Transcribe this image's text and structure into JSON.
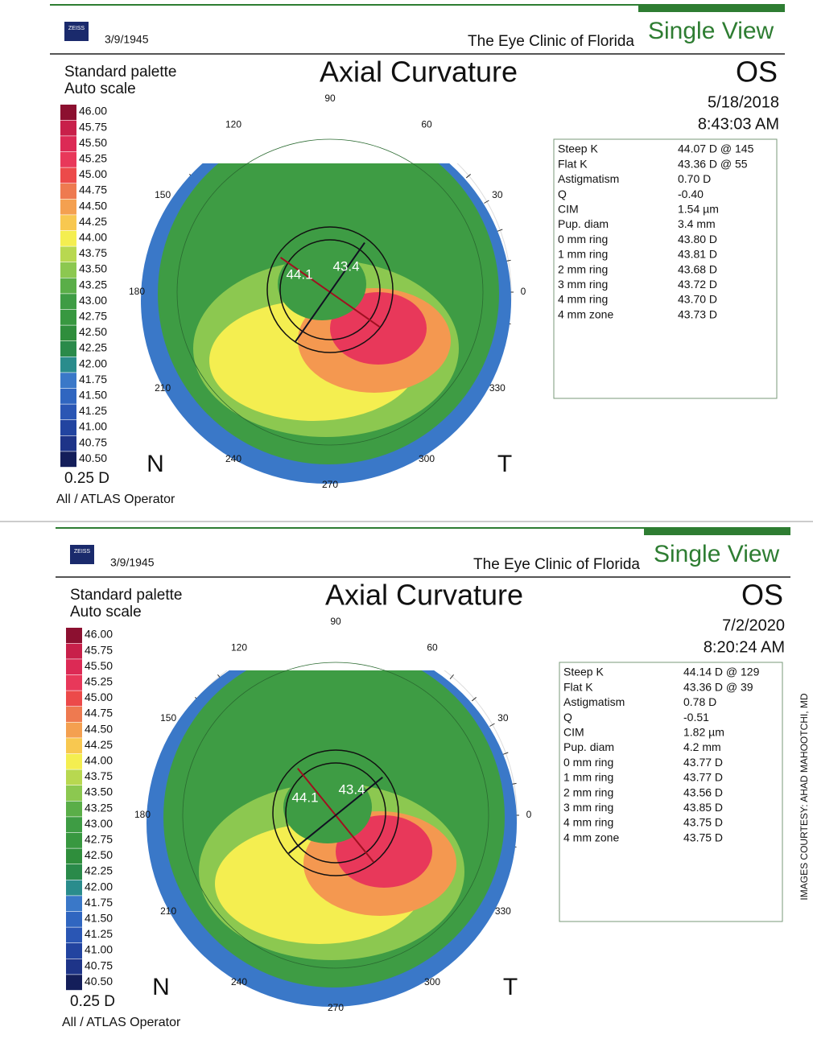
{
  "reports": [
    {
      "header": {
        "logo": "ZEISS",
        "dob": "3/9/1945",
        "clinic": "The Eye Clinic of Florida",
        "view": "Single View"
      },
      "title": "Axial Curvature",
      "eye": "OS",
      "date": "5/18/2018",
      "time": "8:43:03 AM",
      "palette": "Standard palette",
      "scale": "Auto scale",
      "legend": [
        "46.00",
        "45.75",
        "45.50",
        "45.25",
        "45.00",
        "44.75",
        "44.50",
        "44.25",
        "44.00",
        "43.75",
        "43.50",
        "43.25",
        "43.00",
        "42.75",
        "42.50",
        "42.25",
        "42.00",
        "41.75",
        "41.50",
        "41.25",
        "41.00",
        "40.75",
        "40.50"
      ],
      "step": "0.25 D",
      "operator": "All / ATLAS Operator",
      "nasal": "N",
      "temporal": "T",
      "angles": [
        "0",
        "30",
        "60",
        "90",
        "120",
        "150",
        "180",
        "210",
        "240",
        "270",
        "300",
        "330"
      ],
      "k_labels": [
        "44.1",
        "43.4"
      ],
      "table": [
        [
          "Steep K",
          "44.07 D @ 145"
        ],
        [
          "Flat K",
          "43.36 D @ 55"
        ],
        [
          "Astigmatism",
          "0.70 D"
        ],
        [
          "Q",
          "-0.40"
        ],
        [
          "CIM",
          "1.54 µm"
        ],
        [
          "Pup. diam",
          "3.4 mm"
        ],
        [
          "0 mm ring",
          "43.80 D"
        ],
        [
          "1 mm ring",
          "43.81 D"
        ],
        [
          "2 mm ring",
          "43.68 D"
        ],
        [
          "3 mm ring",
          "43.72 D"
        ],
        [
          "4 mm ring",
          "43.70 D"
        ],
        [
          "4 mm zone",
          "43.73 D"
        ]
      ]
    },
    {
      "header": {
        "logo": "ZEISS",
        "dob": "3/9/1945",
        "clinic": "The Eye Clinic of Florida",
        "view": "Single View"
      },
      "title": "Axial Curvature",
      "eye": "OS",
      "date": "7/2/2020",
      "time": "8:20:24 AM",
      "palette": "Standard palette",
      "scale": "Auto scale",
      "legend": [
        "46.00",
        "45.75",
        "45.50",
        "45.25",
        "45.00",
        "44.75",
        "44.50",
        "44.25",
        "44.00",
        "43.75",
        "43.50",
        "43.25",
        "43.00",
        "42.75",
        "42.50",
        "42.25",
        "42.00",
        "41.75",
        "41.50",
        "41.25",
        "41.00",
        "40.75",
        "40.50"
      ],
      "step": "0.25 D",
      "operator": "All / ATLAS Operator",
      "nasal": "N",
      "temporal": "T",
      "angles": [
        "0",
        "30",
        "60",
        "90",
        "120",
        "150",
        "180",
        "210",
        "240",
        "270",
        "300",
        "330"
      ],
      "k_labels": [
        "44.1",
        "43.4"
      ],
      "table": [
        [
          "Steep K",
          "44.14 D @ 129"
        ],
        [
          "Flat K",
          "43.36 D @ 39"
        ],
        [
          "Astigmatism",
          "0.78 D"
        ],
        [
          "Q",
          "-0.51"
        ],
        [
          "CIM",
          "1.82 µm"
        ],
        [
          "Pup. diam",
          "4.2 mm"
        ],
        [
          "0 mm ring",
          "43.77 D"
        ],
        [
          "1 mm ring",
          "43.77 D"
        ],
        [
          "2 mm ring",
          "43.56 D"
        ],
        [
          "3 mm ring",
          "43.85 D"
        ],
        [
          "4 mm ring",
          "43.75 D"
        ],
        [
          "4 mm zone",
          "43.75 D"
        ]
      ]
    }
  ],
  "legend_colors": [
    "#8c1030",
    "#c8204a",
    "#dc2a55",
    "#e8385a",
    "#ec4a4a",
    "#ee7a50",
    "#f4a050",
    "#f8c850",
    "#f4ee50",
    "#b8d850",
    "#8cc850",
    "#5aae48",
    "#3e9c44",
    "#389840",
    "#2f8e3c",
    "#2a8a4a",
    "#2a8c8c",
    "#3a78c8",
    "#3066c0",
    "#2a56b4",
    "#2244a0",
    "#1e3488",
    "#141e5a"
  ],
  "credit": "IMAGES COURTESY: AHAD MAHOOTCHI, MD"
}
